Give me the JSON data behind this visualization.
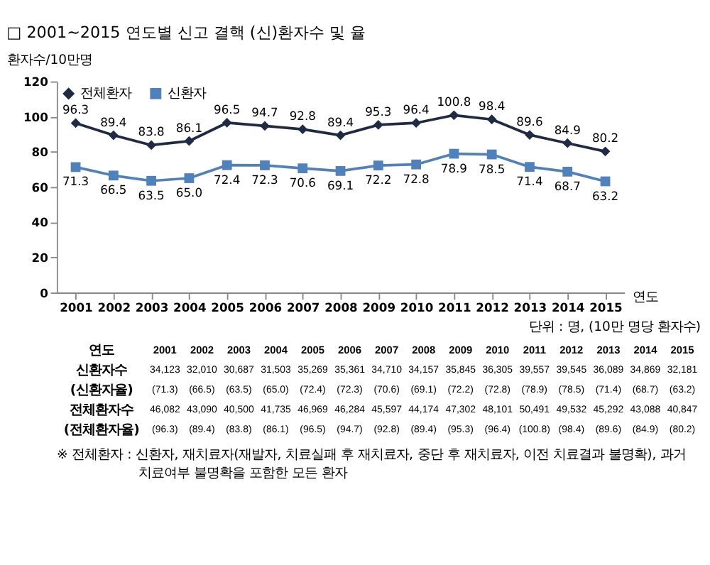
{
  "chart_data": {
    "type": "line",
    "title": "□ 2001~2015 연도별 신고 결핵 (신)환자수 및 율",
    "xlabel": "연도",
    "ylabel": "환자수/10만명",
    "categories": [
      "2001",
      "2002",
      "2003",
      "2004",
      "2005",
      "2006",
      "2007",
      "2008",
      "2009",
      "2010",
      "2011",
      "2012",
      "2013",
      "2014",
      "2015"
    ],
    "series": [
      {
        "name": "전체환자",
        "color": "#1f2a44",
        "marker": "diamond",
        "values": [
          96.3,
          89.4,
          83.8,
          86.1,
          96.5,
          94.7,
          92.8,
          89.4,
          95.3,
          96.4,
          100.8,
          98.4,
          89.6,
          84.9,
          80.2
        ],
        "value_labels": [
          "96.3",
          "89.4",
          "83.8",
          "86.1",
          "96.5",
          "94.7",
          "92.8",
          "89.4",
          "95.3",
          "96.4",
          "100.8",
          "98.4",
          "89.6",
          "84.9",
          "80.2"
        ]
      },
      {
        "name": "신환자",
        "color": "#4f81bd",
        "marker": "square",
        "values": [
          71.3,
          66.5,
          63.5,
          65.0,
          72.4,
          72.3,
          70.6,
          69.1,
          72.2,
          72.8,
          78.9,
          78.5,
          71.4,
          68.7,
          63.2
        ],
        "value_labels": [
          "71.3",
          "66.5",
          "63.5",
          "65.0",
          "72.4",
          "72.3",
          "70.6",
          "69.1",
          "72.2",
          "72.8",
          "78.9",
          "78.5",
          "71.4",
          "68.7",
          "63.2"
        ]
      }
    ],
    "ylim": [
      0,
      120
    ],
    "yticks": [
      0,
      20,
      40,
      60,
      80,
      100,
      120
    ],
    "grid": false,
    "legend": "top left",
    "annotations": [
      "단위 : 명, (10만 명당 환자수)",
      "연도",
      "2001",
      "2002",
      "2003",
      "2004",
      "2005",
      "2006",
      "2007",
      "2008",
      "2009",
      "2010",
      "2011",
      "2012",
      "2013",
      "2014",
      "2015",
      "신환자수",
      "34,123",
      "32,010",
      "30,687",
      "31,503",
      "35,269",
      "35,361",
      "34,710",
      "34,157",
      "35,845",
      "36,305",
      "39,557",
      "39,545",
      "36,089",
      "34,869",
      "32,181",
      "(신환자율)",
      "(71.3)",
      "(66.5)",
      "(63.5)",
      "(65.0)",
      "(72.4)",
      "(72.3)",
      "(70.6)",
      "(69.1)",
      "(72.2)",
      "(72.8)",
      "(78.9)",
      "(78.5)",
      "(71.4)",
      "(68.7)",
      "(63.2)",
      "전체환자수",
      "46,082",
      "43,090",
      "40,500",
      "41,735",
      "46,969",
      "46,284",
      "45,597",
      "44,174",
      "47,302",
      "48,101",
      "50,491",
      "49,532",
      "45,292",
      "43,088",
      "40,847",
      "(전체환자율)",
      "(96.3)",
      "(89.4)",
      "(83.8)",
      "(86.1)",
      "(96.5)",
      "(94.7)",
      "(92.8)",
      "(89.4)",
      "(95.3)",
      "(96.4)",
      "(100.8)",
      "(98.4)",
      "(89.6)",
      "(84.9)",
      "(80.2)",
      "※ 전체환자 : 신환자, 재치료자(재발자, 치료실패 후 재치료자, 중단 후 재치료자, 이전 치료결과 불명확), 과거",
      "치료여부 불명확을 포함한 모든 환자"
    ]
  }
}
